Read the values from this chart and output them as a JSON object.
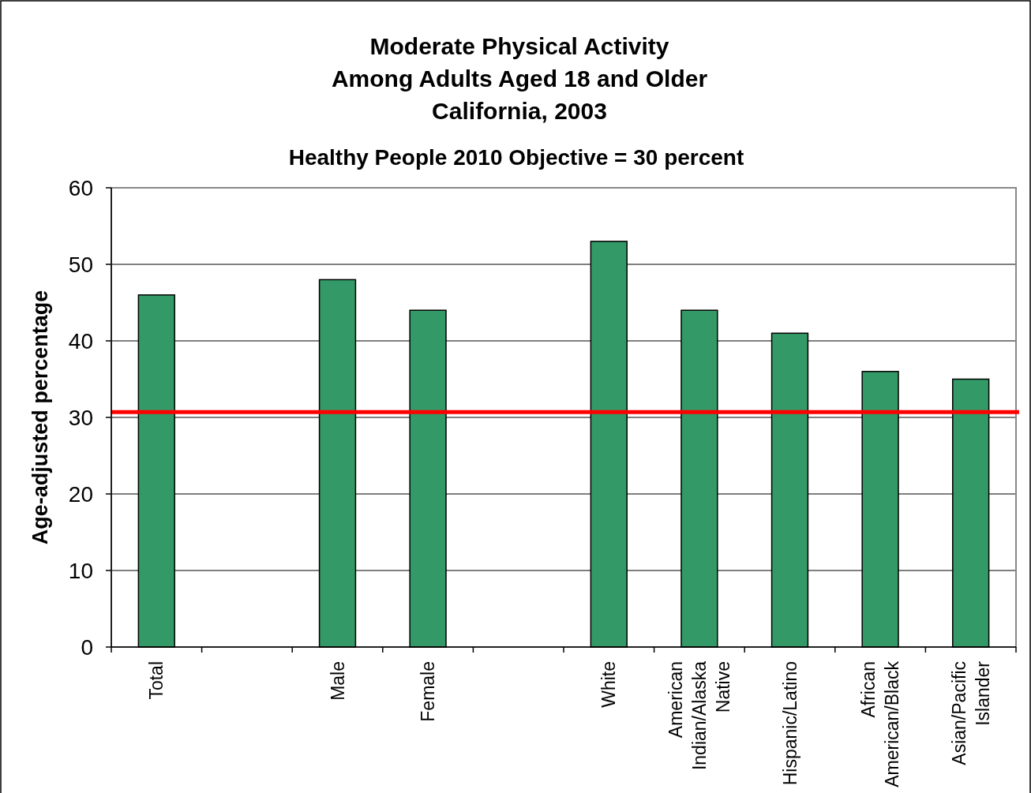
{
  "chart_data": {
    "type": "bar",
    "title": "Moderate Physical Activity\nAmong Adults Aged 18 and Older\nCalifornia, 2003",
    "subtitle": "Healthy People 2010 Objective = 30 percent",
    "ylabel": "Age-adjusted percentage",
    "categories": [
      "Total",
      null,
      "Male",
      "Female",
      null,
      "White",
      "American Indian/Alaska Native",
      "Hispanic/Latino",
      "African American/Black",
      "Asian/Pacific Islander"
    ],
    "values": [
      46,
      null,
      48,
      44,
      null,
      53,
      44,
      41,
      36,
      35
    ],
    "color": "#339966",
    "ylim": [
      0,
      60
    ],
    "yticks": [
      0,
      10,
      20,
      30,
      40,
      50,
      60
    ],
    "grid": "y",
    "ref_lines": [
      {
        "axis": "y",
        "value": 30.7,
        "color": "#ff0000"
      }
    ]
  }
}
